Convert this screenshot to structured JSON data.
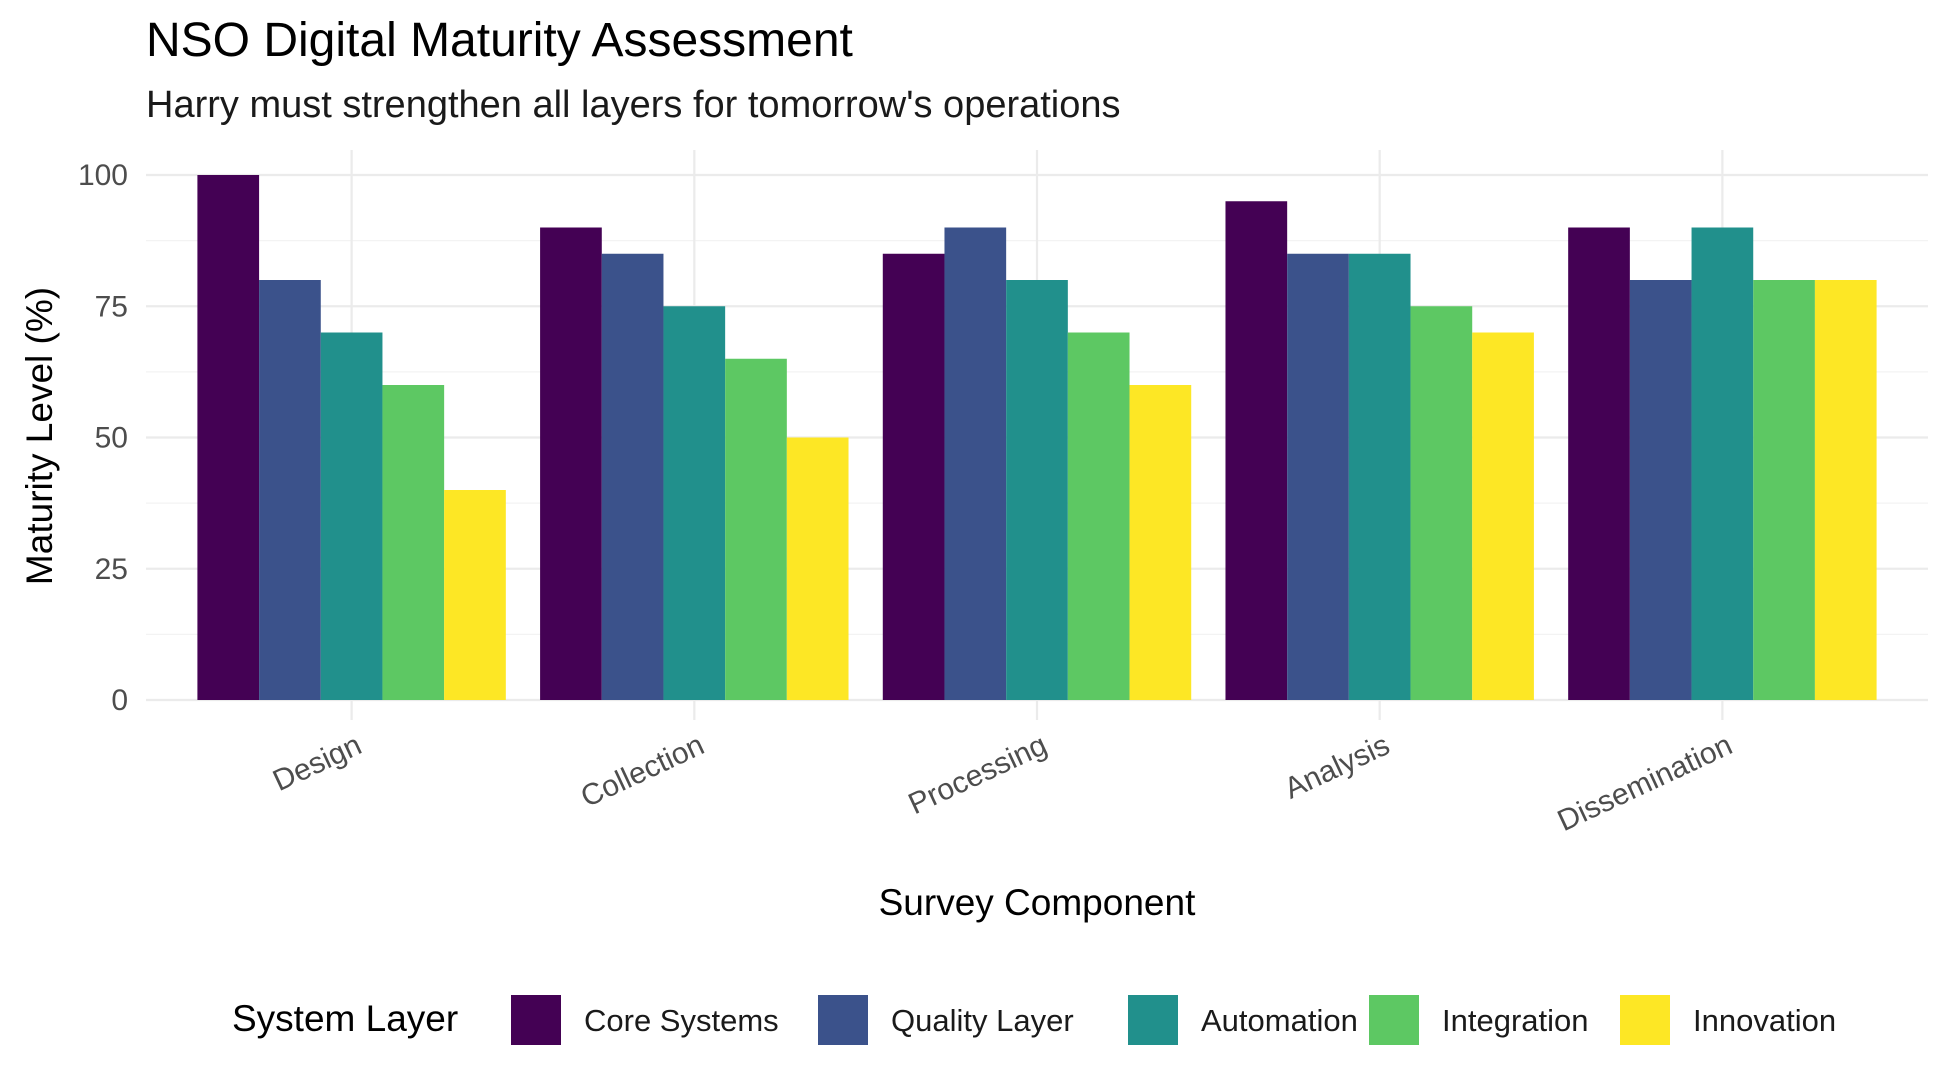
{
  "chart_data": {
    "type": "bar",
    "title": "NSO Digital Maturity Assessment",
    "subtitle": "Harry must strengthen all layers for tomorrow's operations",
    "xlabel": "Survey Component",
    "ylabel": "Maturity Level (%)",
    "categories": [
      "Design",
      "Collection",
      "Processing",
      "Analysis",
      "Dissemination"
    ],
    "ylim": [
      0,
      100
    ],
    "yticks": [
      0,
      25,
      50,
      75,
      100
    ],
    "grid": true,
    "legend_title": "System Layer",
    "legend_position": "bottom",
    "series": [
      {
        "name": "Core Systems",
        "color": "#440154",
        "values": [
          100,
          90,
          85,
          95,
          90
        ]
      },
      {
        "name": "Quality Layer",
        "color": "#3B528B",
        "values": [
          80,
          85,
          90,
          85,
          80
        ]
      },
      {
        "name": "Automation",
        "color": "#21908C",
        "values": [
          70,
          75,
          80,
          85,
          90
        ]
      },
      {
        "name": "Integration",
        "color": "#5DC863",
        "values": [
          60,
          65,
          70,
          75,
          80
        ]
      },
      {
        "name": "Innovation",
        "color": "#FDE725",
        "values": [
          40,
          50,
          60,
          70,
          80
        ]
      }
    ]
  }
}
